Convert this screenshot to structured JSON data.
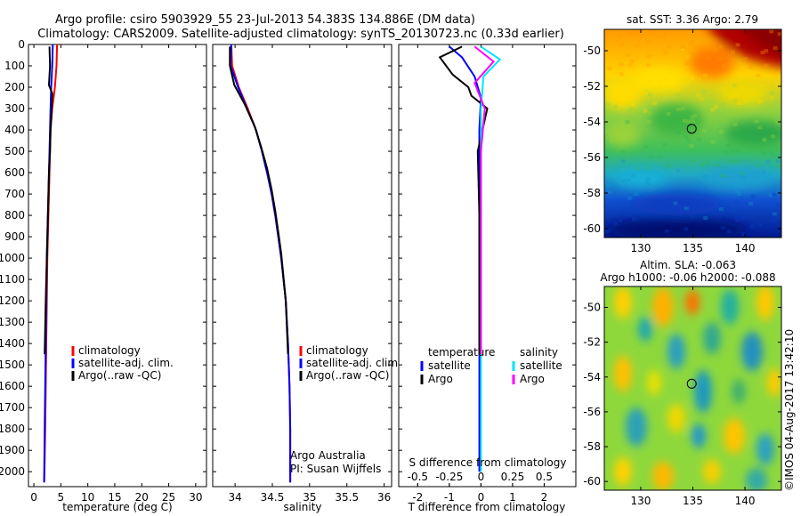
{
  "title": {
    "line1": "Argo profile: csiro 5903929_55 23-Jul-2013 54.383S 134.886E (DM data)",
    "line2": "Climatology: CARS2009. Satellite-adjusted climatology: synTS_20130723.nc (0.33d earlier)"
  },
  "chart_data": [
    {
      "type": "line",
      "id": "temperature",
      "xlabel": "temperature (deg C)",
      "ylabel": "",
      "xlim": [
        -1,
        32
      ],
      "ylim": [
        2070,
        0
      ],
      "xticks": [
        0,
        5,
        10,
        15,
        20,
        25,
        30
      ],
      "xticklabels": [
        "0",
        "5",
        "10",
        "15",
        "20",
        "25",
        "30"
      ],
      "yticks": [
        0,
        100,
        200,
        300,
        400,
        500,
        600,
        700,
        800,
        900,
        1000,
        1100,
        1200,
        1300,
        1400,
        1500,
        1600,
        1700,
        1800,
        1900,
        2000
      ],
      "yticklabels": [
        "0",
        "100",
        "200",
        "300",
        "400",
        "500",
        "600",
        "700",
        "800",
        "900",
        "1000",
        "1100",
        "1200",
        "1300",
        "1400",
        "1500",
        "1600",
        "1700",
        "1800",
        "1900",
        "2000"
      ],
      "series": [
        {
          "name": "climatology",
          "color": "#ff0000",
          "x": [
            4.3,
            4.2,
            3.9,
            3.4,
            3.1,
            3.0,
            2.9,
            2.8,
            2.7,
            2.6,
            2.5,
            2.4,
            2.3,
            2.2,
            2.1,
            2.0,
            1.9
          ],
          "y": [
            0,
            100,
            200,
            300,
            400,
            500,
            600,
            700,
            800,
            900,
            1000,
            1200,
            1400,
            1600,
            1800,
            1950,
            2050
          ]
        },
        {
          "name": "satellite-adj. clim.",
          "color": "#0000ff",
          "x": [
            3.5,
            3.4,
            3.2,
            3.1,
            3.0,
            2.9,
            2.8,
            2.7,
            2.6,
            2.5,
            2.4,
            2.3,
            2.2,
            2.1,
            2.0,
            1.9
          ],
          "y": [
            0,
            100,
            200,
            300,
            400,
            500,
            600,
            700,
            800,
            900,
            1000,
            1200,
            1400,
            1600,
            1800,
            2050
          ]
        },
        {
          "name": "Argo(..raw -QC)",
          "color": "#000000",
          "x": [
            2.9,
            3.0,
            2.8,
            3.4,
            3.3,
            3.1,
            3.0,
            2.8,
            2.7,
            2.6,
            2.5,
            2.4,
            2.2,
            2.0
          ],
          "y": [
            10,
            100,
            190,
            230,
            300,
            400,
            500,
            600,
            700,
            800,
            900,
            1000,
            1200,
            1450
          ]
        }
      ],
      "legend": [
        "climatology",
        "satellite-adj. clim.",
        "Argo(..raw -QC)"
      ],
      "legend_position": "lower-right"
    },
    {
      "type": "line",
      "id": "salinity",
      "xlabel": "salinity",
      "xlim": [
        33.7,
        36.1
      ],
      "ylim": [
        2070,
        0
      ],
      "xticks": [
        34,
        34.5,
        35,
        35.5,
        36
      ],
      "xticklabels": [
        "34",
        "34.5",
        "35",
        "35.5",
        "36"
      ],
      "series": [
        {
          "name": "climatology",
          "color": "#ff0000",
          "x": [
            33.95,
            33.96,
            34.05,
            34.17,
            34.28,
            34.36,
            34.43,
            34.49,
            34.54,
            34.58,
            34.62,
            34.68,
            34.71,
            34.73,
            34.74,
            34.74
          ],
          "y": [
            0,
            100,
            200,
            300,
            400,
            500,
            600,
            700,
            800,
            900,
            1000,
            1200,
            1400,
            1600,
            1800,
            2050
          ]
        },
        {
          "name": "satellite-adj. clim.",
          "color": "#0000ff",
          "x": [
            33.95,
            33.94,
            34.04,
            34.16,
            34.28,
            34.36,
            34.43,
            34.49,
            34.54,
            34.58,
            34.62,
            34.68,
            34.71,
            34.73,
            34.74,
            34.74
          ],
          "y": [
            0,
            100,
            200,
            300,
            400,
            500,
            600,
            700,
            800,
            900,
            1000,
            1200,
            1400,
            1600,
            1800,
            2050
          ]
        },
        {
          "name": "Argo(..raw -QC)",
          "color": "#000000",
          "x": [
            33.93,
            33.93,
            33.99,
            34.13,
            34.26,
            34.35,
            34.43,
            34.49,
            34.54,
            34.58,
            34.62,
            34.68,
            34.71
          ],
          "y": [
            10,
            100,
            190,
            280,
            380,
            480,
            580,
            680,
            780,
            880,
            980,
            1200,
            1450
          ]
        }
      ],
      "legend": [
        "climatology",
        "satellite-adj. clim.",
        "Argo(..raw -QC)"
      ],
      "legend_position": "lower-right",
      "annotations": [
        "Argo Australia",
        "PI: Susan Wijffels"
      ]
    },
    {
      "type": "line",
      "id": "difference",
      "xlabel": "T difference from climatology",
      "x2label": "S difference from climatology",
      "xlim": [
        -2.6,
        3.0
      ],
      "x2lim": [
        -0.65,
        0.75
      ],
      "ylim": [
        2070,
        0
      ],
      "xticks": [
        -2,
        -1,
        0,
        1,
        2
      ],
      "xticklabels": [
        "-2",
        "-1",
        "0",
        "1",
        "2"
      ],
      "x2ticks": [
        -0.5,
        -0.25,
        0,
        0.25,
        0.5
      ],
      "x2ticklabels": [
        "-0.5",
        "-0.25",
        "0",
        "0.25",
        "0.5"
      ],
      "series": [
        {
          "name": "temperature satellite",
          "group": "temperature",
          "color": "#0000ff",
          "x": [
            -1.0,
            -0.6,
            -0.2,
            0.0,
            -0.05,
            -0.05,
            -0.05,
            -0.05,
            -0.05
          ],
          "y": [
            10,
            60,
            150,
            250,
            400,
            700,
            1000,
            1400,
            2000
          ]
        },
        {
          "name": "temperature Argo",
          "group": "temperature",
          "color": "#000000",
          "x": [
            -0.6,
            -1.3,
            -0.9,
            -0.4,
            -0.3,
            0.2,
            -0.1,
            -0.05,
            -0.05
          ],
          "y": [
            10,
            60,
            140,
            200,
            240,
            300,
            500,
            800,
            1450
          ]
        },
        {
          "name": "salinity satellite",
          "group": "salinity",
          "color": "#00e5ff",
          "x": [
            0.0,
            0.15,
            0.02,
            0.0,
            0.0,
            0.0,
            0.0,
            0.0
          ],
          "y": [
            10,
            70,
            150,
            300,
            500,
            800,
            1200,
            2000
          ]
        },
        {
          "name": "salinity Argo",
          "group": "salinity",
          "color": "#ff00ff",
          "x": [
            -0.05,
            0.1,
            -0.05,
            0.03,
            0.0,
            0.0
          ],
          "y": [
            10,
            80,
            180,
            300,
            500,
            1450
          ]
        }
      ],
      "legend_titles": [
        "temperature",
        "salinity"
      ],
      "legend": [
        "satellite",
        "Argo",
        "satellite",
        "Argo"
      ],
      "legend_position": "lower"
    },
    {
      "type": "heatmap",
      "id": "sst-map",
      "title": "sat. SST: 3.36 Argo: 2.79",
      "xlim": [
        126.5,
        143.5
      ],
      "ylim": [
        -60.5,
        -48.8
      ],
      "xticks": [
        130,
        135,
        140
      ],
      "xticklabels": [
        "130",
        "135",
        "140"
      ],
      "yticks": [
        -50,
        -52,
        -54,
        -56,
        -58,
        -60
      ],
      "yticklabels": [
        "-50",
        "-52",
        "-54",
        "-56",
        "-58",
        "-60"
      ],
      "marker": {
        "lon": 134.886,
        "lat": -54.383
      }
    },
    {
      "type": "heatmap",
      "id": "sla-map",
      "title": "Altim. SLA: -0.063",
      "subtitle": "Argo h1000: -0.06 h2000: -0.088",
      "xlim": [
        126.5,
        143.5
      ],
      "ylim": [
        -60.5,
        -48.8
      ],
      "xticks": [
        130,
        135,
        140
      ],
      "xticklabels": [
        "130",
        "135",
        "140"
      ],
      "yticks": [
        -50,
        -52,
        -54,
        -56,
        -58,
        -60
      ],
      "yticklabels": [
        "-50",
        "-52",
        "-54",
        "-56",
        "-58",
        "-60"
      ],
      "marker": {
        "lon": 134.886,
        "lat": -54.383
      }
    }
  ],
  "stamp": "©IMOS 04-Aug-2017 13:42:10"
}
